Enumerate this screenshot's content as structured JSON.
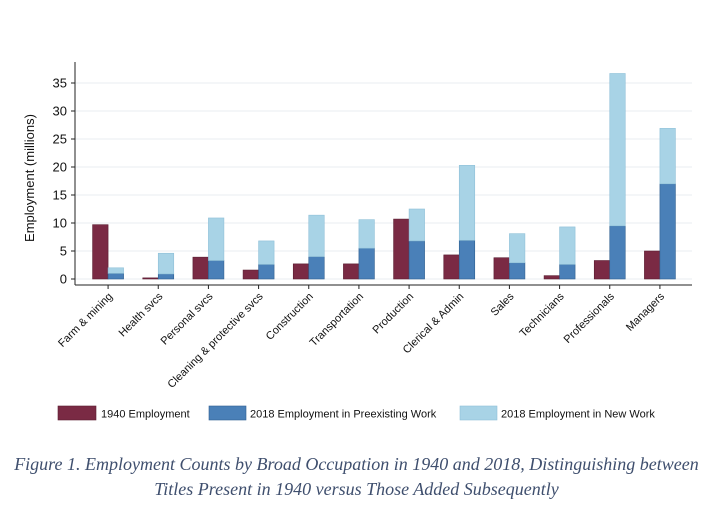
{
  "chart_data": {
    "type": "bar",
    "ylabel": "Employment (millions)",
    "ylim": [
      0,
      37
    ],
    "yticks": [
      0,
      5,
      10,
      15,
      20,
      25,
      30,
      35
    ],
    "grid": true,
    "legend_position": "bottom",
    "categories": [
      "Farm & mining",
      "Health svcs",
      "Personal svcs",
      "Cleaning & protective svcs",
      "Construction",
      "Transportation",
      "Production",
      "Clerical & Admin",
      "Sales",
      "Technicians",
      "Professionals",
      "Managers"
    ],
    "series": [
      {
        "name": "1940 Employment",
        "color": "#7a2a44",
        "values": [
          9.7,
          0.2,
          3.9,
          1.6,
          2.7,
          2.7,
          10.7,
          4.3,
          3.8,
          0.6,
          3.3,
          5.0
        ]
      },
      {
        "name": "2018 Employment in Preexisting Work",
        "color": "#4a80b8",
        "values": [
          1.0,
          0.9,
          3.3,
          2.6,
          4.0,
          5.5,
          6.8,
          6.9,
          2.9,
          2.6,
          9.5,
          17.0
        ]
      },
      {
        "name": "2018 Employment in New Work",
        "color": "#a8d3e6",
        "values": [
          1.0,
          3.7,
          7.6,
          4.2,
          7.4,
          5.1,
          5.7,
          13.4,
          5.2,
          6.7,
          27.2,
          9.9
        ]
      }
    ]
  },
  "caption": {
    "line1": "Figure 1. Employment Counts by Broad Occupation in 1940 and 2018, Distinguishing between",
    "line2": "Titles Present in 1940 versus Those Added Subsequently"
  }
}
